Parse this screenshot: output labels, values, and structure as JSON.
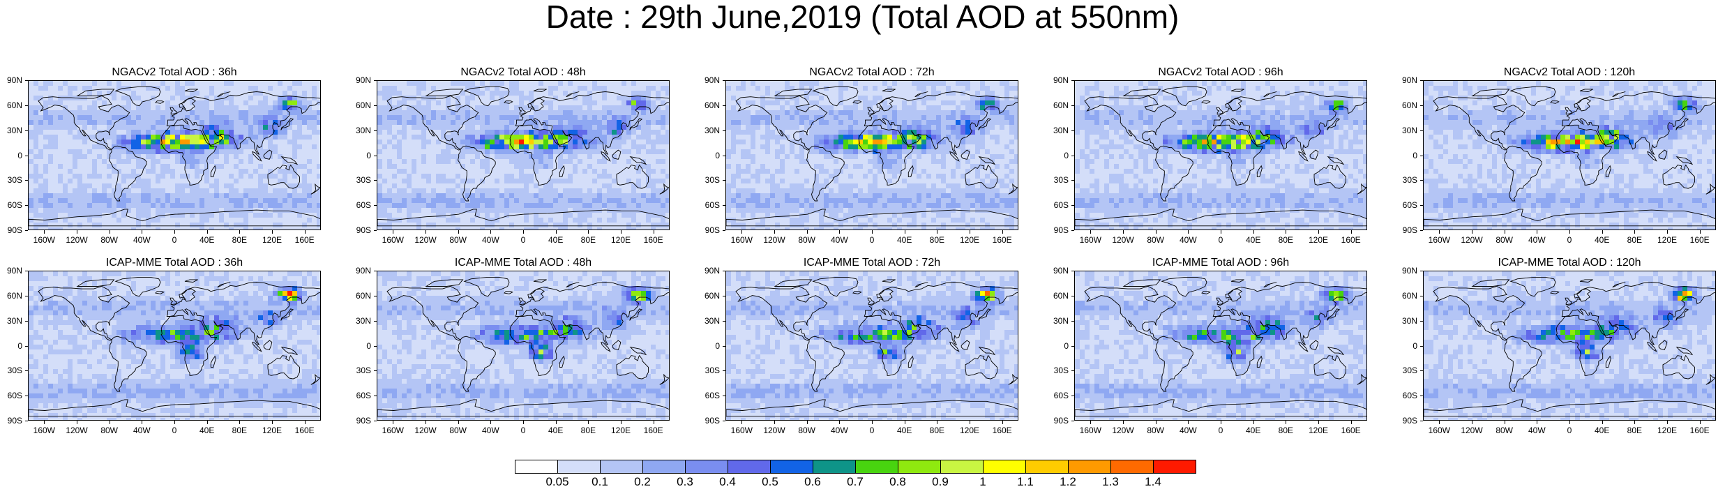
{
  "title": "Date : 29th June,2019 (Total AOD at 550nm)",
  "rows": [
    {
      "model": "NGACv2",
      "panels": [
        {
          "title": "NGACv2 Total AOD : 36h"
        },
        {
          "title": "NGACv2 Total AOD : 48h"
        },
        {
          "title": "NGACv2 Total AOD : 72h"
        },
        {
          "title": "NGACv2 Total AOD : 96h"
        },
        {
          "title": "NGACv2 Total AOD : 120h"
        }
      ]
    },
    {
      "model": "ICAP-MME",
      "panels": [
        {
          "title": "ICAP-MME Total AOD : 36h"
        },
        {
          "title": "ICAP-MME Total AOD : 48h"
        },
        {
          "title": "ICAP-MME Total AOD : 72h"
        },
        {
          "title": "ICAP-MME Total AOD : 96h"
        },
        {
          "title": "ICAP-MME Total AOD : 120h"
        }
      ]
    }
  ],
  "lat_labels": [
    "90N",
    "60N",
    "30N",
    "0",
    "30S",
    "60S",
    "90S"
  ],
  "lon_labels": [
    "160W",
    "120W",
    "80W",
    "40W",
    "0",
    "40E",
    "80E",
    "120E",
    "160E"
  ],
  "lon_values": [
    -160,
    -120,
    -80,
    -40,
    0,
    40,
    80,
    120,
    160
  ],
  "colorbar": {
    "labels": [
      "0.05",
      "0.1",
      "0.2",
      "0.3",
      "0.4",
      "0.5",
      "0.6",
      "0.7",
      "0.8",
      "0.9",
      "1",
      "1.1",
      "1.2",
      "1.3",
      "1.4"
    ],
    "colors": [
      "#ffffff",
      "#d4def9",
      "#b4c5f5",
      "#8fa8f2",
      "#7a8ef0",
      "#6169ea",
      "#1263e6",
      "#0e9488",
      "#48d40f",
      "#8fe90f",
      "#c9f542",
      "#ffff00",
      "#ffcc00",
      "#ff9a00",
      "#ff6a00",
      "#ff1a00"
    ]
  }
}
